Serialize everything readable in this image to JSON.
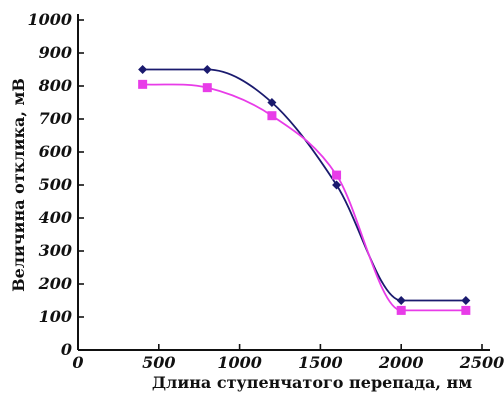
{
  "chart_data": {
    "type": "line",
    "title": "",
    "xlabel": "Длина ступенчатого перепада, нм",
    "ylabel": "Величина отклика, мВ",
    "xlim": [
      0,
      2500
    ],
    "ylim": [
      0,
      1000
    ],
    "xticks": [
      0,
      500,
      1000,
      1500,
      2000,
      2500
    ],
    "yticks": [
      0,
      100,
      200,
      300,
      400,
      500,
      600,
      700,
      800,
      900,
      1000
    ],
    "grid": false,
    "legend": "none",
    "series": [
      {
        "color": "#1a1a6e",
        "marker": "diamond",
        "x": [
          400,
          800,
          1200,
          1600,
          2000,
          2400
        ],
        "y": [
          850,
          850,
          750,
          500,
          150,
          150
        ]
      },
      {
        "color": "#e83ce8",
        "marker": "square",
        "x": [
          400,
          800,
          1200,
          1600,
          2000,
          2400
        ],
        "y": [
          805,
          795,
          710,
          530,
          120,
          120
        ]
      }
    ]
  }
}
